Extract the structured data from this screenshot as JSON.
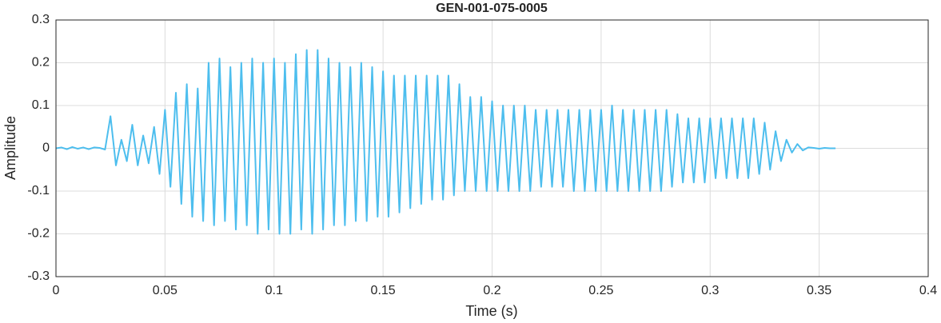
{
  "chart_data": {
    "type": "line",
    "title": "GEN-001-075-0005",
    "xlabel": "Time (s)",
    "ylabel": "Amplitude",
    "x": [
      0,
      0.0025,
      0.005,
      0.0075,
      0.01,
      0.0125,
      0.015,
      0.0175,
      0.02,
      0.0225,
      0.025,
      0.0275,
      0.03,
      0.0325,
      0.035,
      0.0375,
      0.04,
      0.0425,
      0.045,
      0.0475,
      0.05,
      0.0525,
      0.055,
      0.0575,
      0.06,
      0.0625,
      0.065,
      0.0675,
      0.07,
      0.0725,
      0.075,
      0.0775,
      0.08,
      0.0825,
      0.085,
      0.0875,
      0.09,
      0.0925,
      0.095,
      0.0975,
      0.1,
      0.1025,
      0.105,
      0.1075,
      0.11,
      0.1125,
      0.115,
      0.1175,
      0.12,
      0.1225,
      0.125,
      0.1275,
      0.13,
      0.1325,
      0.135,
      0.1375,
      0.14,
      0.1425,
      0.145,
      0.1475,
      0.15,
      0.1525,
      0.155,
      0.1575,
      0.16,
      0.1625,
      0.165,
      0.1675,
      0.17,
      0.1725,
      0.175,
      0.1775,
      0.18,
      0.1825,
      0.185,
      0.1875,
      0.19,
      0.1925,
      0.195,
      0.1975,
      0.2,
      0.2025,
      0.205,
      0.2075,
      0.21,
      0.2125,
      0.215,
      0.2175,
      0.22,
      0.2225,
      0.225,
      0.2275,
      0.23,
      0.2325,
      0.235,
      0.2375,
      0.24,
      0.2425,
      0.245,
      0.2475,
      0.25,
      0.2525,
      0.255,
      0.2575,
      0.26,
      0.2625,
      0.265,
      0.2675,
      0.27,
      0.2725,
      0.275,
      0.2775,
      0.28,
      0.2825,
      0.285,
      0.2875,
      0.29,
      0.2925,
      0.295,
      0.2975,
      0.3,
      0.3025,
      0.305,
      0.3075,
      0.31,
      0.3125,
      0.315,
      0.3175,
      0.32,
      0.3225,
      0.325,
      0.3275,
      0.33,
      0.3325,
      0.335,
      0.3375,
      0.34,
      0.3425,
      0.345,
      0.3475,
      0.35,
      0.3525,
      0.355,
      0.3575
    ],
    "values": [
      0,
      0.002,
      -0.002,
      0.003,
      -0.001,
      0.002,
      -0.002,
      0.002,
      0.001,
      -0.003,
      0.075,
      -0.04,
      0.02,
      -0.03,
      0.055,
      -0.04,
      0.03,
      -0.035,
      0.05,
      -0.06,
      0.09,
      -0.09,
      0.13,
      -0.13,
      0.15,
      -0.16,
      0.14,
      -0.17,
      0.2,
      -0.18,
      0.21,
      -0.17,
      0.19,
      -0.19,
      0.2,
      -0.18,
      0.21,
      -0.2,
      0.2,
      -0.19,
      0.21,
      -0.2,
      0.2,
      -0.2,
      0.22,
      -0.19,
      0.23,
      -0.2,
      0.23,
      -0.19,
      0.21,
      -0.18,
      0.2,
      -0.18,
      0.19,
      -0.17,
      0.2,
      -0.17,
      0.19,
      -0.16,
      0.18,
      -0.16,
      0.17,
      -0.15,
      0.17,
      -0.14,
      0.17,
      -0.13,
      0.17,
      -0.12,
      0.17,
      -0.12,
      0.17,
      -0.11,
      0.15,
      -0.1,
      0.12,
      -0.1,
      0.12,
      -0.1,
      0.11,
      -0.1,
      0.1,
      -0.1,
      0.1,
      -0.1,
      0.1,
      -0.1,
      0.09,
      -0.09,
      0.09,
      -0.09,
      0.09,
      -0.09,
      0.09,
      -0.1,
      0.09,
      -0.1,
      0.09,
      -0.1,
      0.09,
      -0.1,
      0.1,
      -0.1,
      0.09,
      -0.1,
      0.09,
      -0.1,
      0.09,
      -0.1,
      0.09,
      -0.1,
      0.09,
      -0.09,
      0.08,
      -0.08,
      0.07,
      -0.08,
      0.07,
      -0.08,
      0.07,
      -0.07,
      0.07,
      -0.07,
      0.07,
      -0.07,
      0.07,
      -0.07,
      0.07,
      -0.06,
      0.06,
      -0.05,
      0.04,
      -0.03,
      0.02,
      -0.01,
      0.01,
      -0.005,
      0.002,
      0.001,
      -0.001,
      0.001,
      0,
      0
    ],
    "color": "#4dbeee",
    "xlim": [
      0,
      0.4
    ],
    "xticks": [
      0,
      0.05,
      0.1,
      0.15,
      0.2,
      0.25,
      0.3,
      0.35,
      0.4
    ],
    "ylim": [
      -0.3,
      0.3
    ],
    "yticks": [
      -0.3,
      -0.2,
      -0.1,
      0,
      0.1,
      0.2,
      0.3
    ],
    "grid": true
  }
}
